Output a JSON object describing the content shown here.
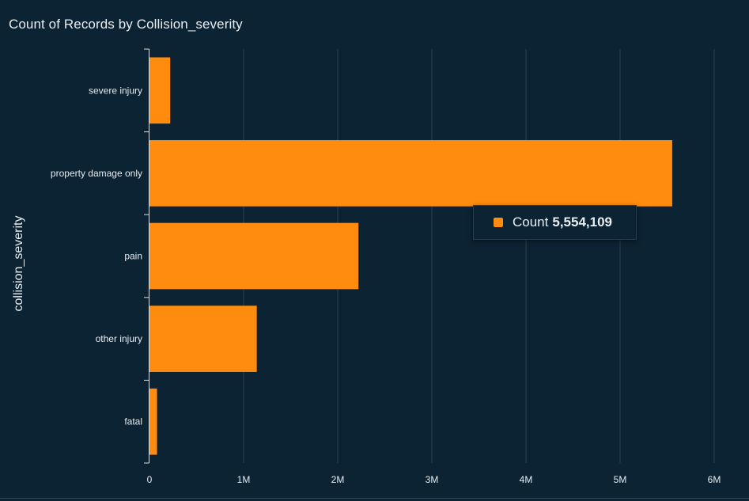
{
  "chart_data": {
    "type": "bar",
    "orientation": "horizontal",
    "title": "Count of Records by Collision_severity",
    "ylabel": "collision_severity",
    "xlabel": "",
    "categories": [
      "severe injury",
      "property damage only",
      "pain",
      "other injury",
      "fatal"
    ],
    "values": [
      220000,
      5554109,
      2220000,
      1140000,
      80000
    ],
    "xlim": [
      0,
      6000000
    ],
    "xticks": [
      0,
      1000000,
      2000000,
      3000000,
      4000000,
      5000000,
      6000000
    ],
    "xtick_labels": [
      "0",
      "1M",
      "2M",
      "3M",
      "4M",
      "5M",
      "6M"
    ],
    "grid": true,
    "bar_color": "#ff8c0e"
  },
  "tooltip": {
    "label": "Count",
    "value": "5,554,109",
    "color": "#ff8c0e"
  }
}
